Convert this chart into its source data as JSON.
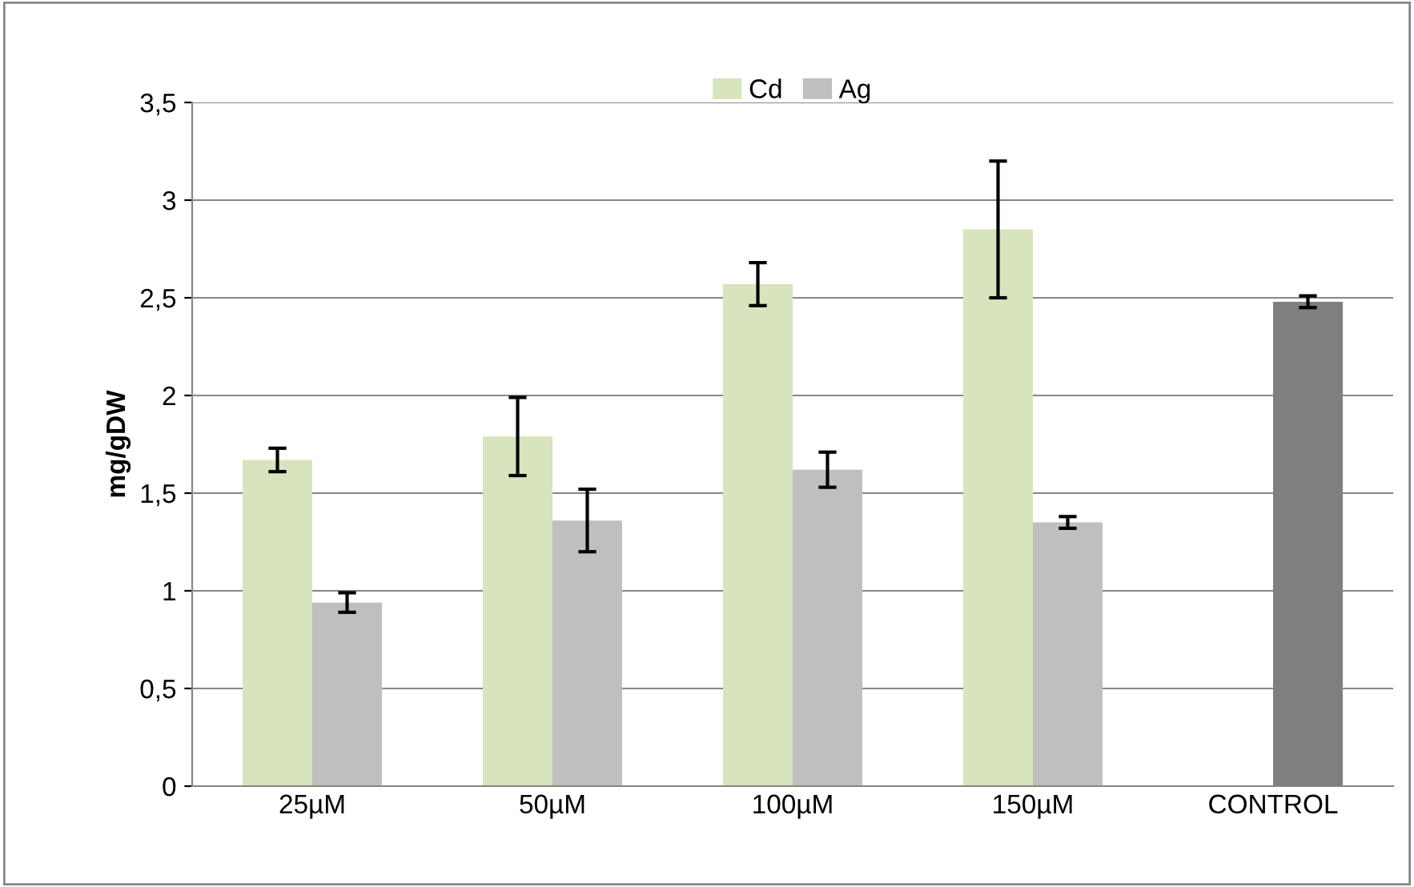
{
  "chart_data": {
    "type": "bar",
    "ylabel": "mg/gDW",
    "categories": [
      "25µM",
      "50µM",
      "100µM",
      "150µM",
      "CONTROL"
    ],
    "series": [
      {
        "name": "Cd",
        "color": "#d7e4bd",
        "values": [
          1.67,
          1.79,
          2.57,
          2.85,
          null
        ],
        "errors": [
          0.06,
          0.2,
          0.11,
          0.35,
          null
        ]
      },
      {
        "name": "Ag",
        "color": "#bfbfbf",
        "colors": [
          "#bfbfbf",
          "#bfbfbf",
          "#bfbfbf",
          "#bfbfbf",
          "#7f7f7f"
        ],
        "values": [
          0.94,
          1.36,
          1.62,
          1.35,
          2.48
        ],
        "errors": [
          0.05,
          0.16,
          0.09,
          0.03,
          0.03
        ]
      }
    ],
    "ylim": [
      0,
      3.5
    ],
    "yticks": [
      0,
      {
        "value": 0.5,
        "label": "0,5"
      },
      1,
      {
        "value": 1.5,
        "label": "1,5"
      },
      2,
      {
        "value": 2.5,
        "label": "2,5"
      },
      3,
      {
        "value": 3.5,
        "label": "3,5"
      }
    ],
    "grid": "y",
    "legend": "top"
  }
}
